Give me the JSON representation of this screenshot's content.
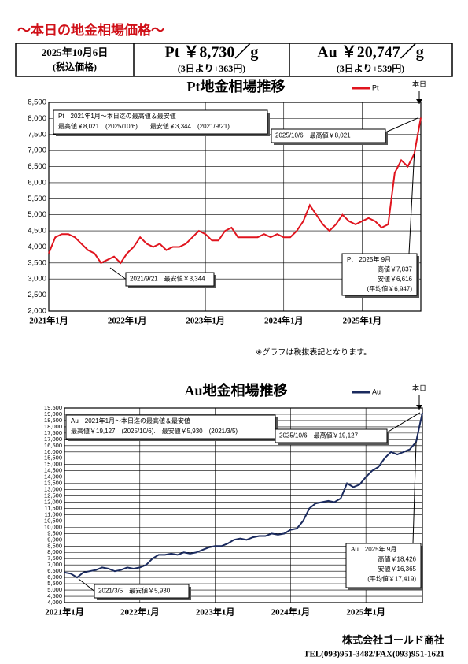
{
  "header": {
    "title": "～本日の地金相場価格～",
    "date": "2025年10月6日",
    "tax": "(税込価格)",
    "pt_price": "Pt ￥8,730／g",
    "pt_change": "(3日より+363円)",
    "au_price": "Au ￥20,747／g",
    "au_change": "(3日より+539円)"
  },
  "note": "※グラフは税抜表記となります。",
  "footer": {
    "company": "株式会社ゴールド商社",
    "contact": "TEL(093)951-3482/FAX(093)951-1621"
  },
  "chart_data": [
    {
      "type": "line",
      "title": "Pt地金相場推移",
      "today_label": "本日",
      "summary": [
        "Pt　2021年1月～本日迄の最高値＆最安値",
        "最高値￥8,021　(2025/10/6)　　最安値￥3,344　(2021/9/21)"
      ],
      "high_note": "2025/10/6　最高値￥8,021",
      "low_note": "2021/9/21　最安値￥3,344",
      "month_box": [
        "Pt　2025年 9月",
        "高値￥7,837",
        "安値￥6,616",
        "(平均値￥6,947)"
      ],
      "x": [
        "2021-01",
        "2021-02",
        "2021-03",
        "2021-04",
        "2021-05",
        "2021-06",
        "2021-07",
        "2021-08",
        "2021-09",
        "2021-10",
        "2021-11",
        "2021-12",
        "2022-01",
        "2022-02",
        "2022-03",
        "2022-04",
        "2022-05",
        "2022-06",
        "2022-07",
        "2022-08",
        "2022-09",
        "2022-10",
        "2022-11",
        "2022-12",
        "2023-01",
        "2023-02",
        "2023-03",
        "2023-04",
        "2023-05",
        "2023-06",
        "2023-07",
        "2023-08",
        "2023-09",
        "2023-10",
        "2023-11",
        "2023-12",
        "2024-01",
        "2024-02",
        "2024-03",
        "2024-04",
        "2024-05",
        "2024-06",
        "2024-07",
        "2024-08",
        "2024-09",
        "2024-10",
        "2024-11",
        "2024-12",
        "2025-01",
        "2025-02",
        "2025-03",
        "2025-04",
        "2025-05",
        "2025-06",
        "2025-07",
        "2025-08",
        "2025-09",
        "2025-10"
      ],
      "series": [
        {
          "name": "Pt",
          "color": "#e0141e",
          "values": [
            3800,
            4300,
            4400,
            4400,
            4300,
            4100,
            3900,
            3800,
            3500,
            3600,
            3700,
            3500,
            3800,
            4000,
            4300,
            4100,
            4000,
            4100,
            3900,
            4000,
            4000,
            4100,
            4300,
            4500,
            4400,
            4200,
            4200,
            4500,
            4600,
            4300,
            4300,
            4300,
            4300,
            4400,
            4300,
            4400,
            4300,
            4300,
            4500,
            4800,
            5300,
            5000,
            4700,
            4500,
            4700,
            5000,
            4800,
            4700,
            4800,
            4900,
            4800,
            4600,
            4700,
            6300,
            6700,
            6500,
            6900,
            8021
          ]
        }
      ],
      "xlim": [
        "2021-01",
        "2025-10"
      ],
      "xticks": [
        {
          "value": "2021-01",
          "label": "2021年1月"
        },
        {
          "value": "2022-01",
          "label": "2022年1月"
        },
        {
          "value": "2023-01",
          "label": "2023年1月"
        },
        {
          "value": "2024-01",
          "label": "2024年1月"
        },
        {
          "value": "2025-01",
          "label": "2025年1月"
        }
      ],
      "ylim": [
        2000,
        8500
      ],
      "yticks": [
        {
          "value": 2000,
          "label": "2,000"
        },
        {
          "value": 2500,
          "label": "2,500"
        },
        {
          "value": 3000,
          "label": "3,000"
        },
        {
          "value": 3500,
          "label": "3,500"
        },
        {
          "value": 4000,
          "label": "4,000"
        },
        {
          "value": 4500,
          "label": "4,500"
        },
        {
          "value": 5000,
          "label": "5,000"
        },
        {
          "value": 5500,
          "label": "5,500"
        },
        {
          "value": 6000,
          "label": "6,000"
        },
        {
          "value": 6500,
          "label": "6,500"
        },
        {
          "value": 7000,
          "label": "7,000"
        },
        {
          "value": 7500,
          "label": "7,500"
        },
        {
          "value": 8000,
          "label": "8,000"
        },
        {
          "value": 8500,
          "label": "8,500"
        }
      ],
      "grid": true,
      "legend": "top-right"
    },
    {
      "type": "line",
      "title": "Au地金相場推移",
      "today_label": "本日",
      "summary": [
        "Au　2021年1月～本日迄の最高値＆最安値",
        "最高値￥19,127　(2025/10/6).　最安値￥5,930　(2021/3/5)"
      ],
      "high_note": "2025/10/6　最高値￥19,127",
      "low_note": "2021/3/5　最安値￥5,930",
      "month_box": [
        "Au　2025年 9月",
        "高値￥18,426",
        "安値￥16,365",
        "(平均値￥17,419)"
      ],
      "x": [
        "2021-01",
        "2021-02",
        "2021-03",
        "2021-04",
        "2021-05",
        "2021-06",
        "2021-07",
        "2021-08",
        "2021-09",
        "2021-10",
        "2021-11",
        "2021-12",
        "2022-01",
        "2022-02",
        "2022-03",
        "2022-04",
        "2022-05",
        "2022-06",
        "2022-07",
        "2022-08",
        "2022-09",
        "2022-10",
        "2022-11",
        "2022-12",
        "2023-01",
        "2023-02",
        "2023-03",
        "2023-04",
        "2023-05",
        "2023-06",
        "2023-07",
        "2023-08",
        "2023-09",
        "2023-10",
        "2023-11",
        "2023-12",
        "2024-01",
        "2024-02",
        "2024-03",
        "2024-04",
        "2024-05",
        "2024-06",
        "2024-07",
        "2024-08",
        "2024-09",
        "2024-10",
        "2024-11",
        "2024-12",
        "2025-01",
        "2025-02",
        "2025-03",
        "2025-04",
        "2025-05",
        "2025-06",
        "2025-07",
        "2025-08",
        "2025-09",
        "2025-10"
      ],
      "series": [
        {
          "name": "Au",
          "color": "#1a2a5e",
          "values": [
            6400,
            6300,
            6000,
            6400,
            6500,
            6600,
            6800,
            6700,
            6500,
            6600,
            6800,
            6700,
            6800,
            7000,
            7500,
            7800,
            7800,
            7900,
            7800,
            8000,
            7900,
            8000,
            8200,
            8400,
            8500,
            8500,
            8700,
            9000,
            9100,
            9000,
            9200,
            9300,
            9300,
            9500,
            9400,
            9500,
            9800,
            9900,
            10500,
            11500,
            11900,
            12000,
            12100,
            12000,
            12300,
            13500,
            13200,
            13400,
            14000,
            14500,
            14800,
            15500,
            16000,
            15800,
            16000,
            16200,
            16800,
            19127
          ]
        }
      ],
      "xlim": [
        "2021-01",
        "2025-10"
      ],
      "xticks": [
        {
          "value": "2021-01",
          "label": "2021年1月"
        },
        {
          "value": "2022-01",
          "label": "2022年1月"
        },
        {
          "value": "2023-01",
          "label": "2023年1月"
        },
        {
          "value": "2024-01",
          "label": "2024年1月"
        },
        {
          "value": "2025-01",
          "label": "2025年1月"
        }
      ],
      "ylim": [
        4000,
        19500
      ],
      "yticks": [
        {
          "value": 4000,
          "label": "4,000"
        },
        {
          "value": 4500,
          "label": "4,500"
        },
        {
          "value": 5000,
          "label": "5,000"
        },
        {
          "value": 5500,
          "label": "5,500"
        },
        {
          "value": 6000,
          "label": "6,000"
        },
        {
          "value": 6500,
          "label": "6,500"
        },
        {
          "value": 7000,
          "label": "7,000"
        },
        {
          "value": 7500,
          "label": "7,500"
        },
        {
          "value": 8000,
          "label": "8,000"
        },
        {
          "value": 8500,
          "label": "8,500"
        },
        {
          "value": 9000,
          "label": "9,000"
        },
        {
          "value": 9500,
          "label": "9,500"
        },
        {
          "value": 10000,
          "label": "10,000"
        },
        {
          "value": 10500,
          "label": "10,500"
        },
        {
          "value": 11000,
          "label": "11,000"
        },
        {
          "value": 11500,
          "label": "11,500"
        },
        {
          "value": 12000,
          "label": "12,000"
        },
        {
          "value": 12500,
          "label": "12,500"
        },
        {
          "value": 13000,
          "label": "13,000"
        },
        {
          "value": 13500,
          "label": "13,500"
        },
        {
          "value": 14000,
          "label": "14,000"
        },
        {
          "value": 14500,
          "label": "14,500"
        },
        {
          "value": 15000,
          "label": "15,000"
        },
        {
          "value": 15500,
          "label": "15,500"
        },
        {
          "value": 16000,
          "label": "16,000"
        },
        {
          "value": 16500,
          "label": "16,500"
        },
        {
          "value": 17000,
          "label": "17,000"
        },
        {
          "value": 17500,
          "label": "17,500"
        },
        {
          "value": 18000,
          "label": "18,000"
        },
        {
          "value": 18500,
          "label": "18,500"
        },
        {
          "value": 19000,
          "label": "19,000"
        },
        {
          "value": 19500,
          "label": "19,500"
        }
      ],
      "grid": true,
      "legend": "top-right"
    }
  ]
}
